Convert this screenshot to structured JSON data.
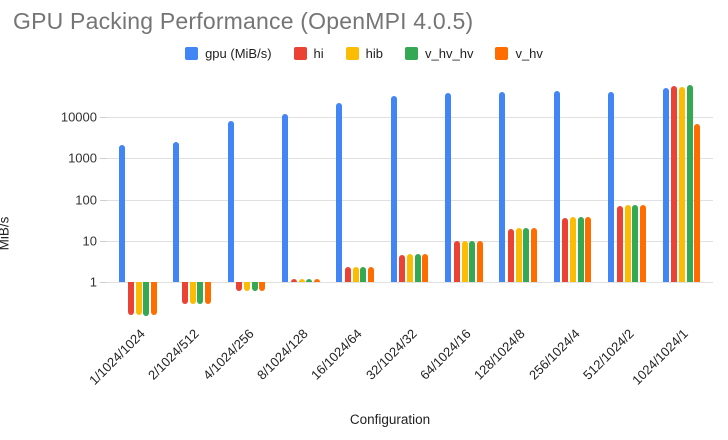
{
  "title": "GPU Packing Performance (OpenMPI 4.0.5)",
  "chart_data": {
    "type": "bar",
    "title": "GPU Packing Performance (OpenMPI 4.0.5)",
    "xlabel": "Configuration",
    "ylabel": "MiB/s",
    "y_scale": "log",
    "y_ticks": [
      10000,
      1000,
      100,
      10,
      1
    ],
    "ylim": [
      0.12,
      60000
    ],
    "bar_baseline": 1,
    "grid": true,
    "legend_position": "top",
    "categories": [
      "1/1024/1024",
      "2/1024/512",
      "4/1024/256",
      "8/1024/128",
      "16/1024/64",
      "32/1024/32",
      "64/1024/16",
      "128/1024/8",
      "256/1024/4",
      "512/1024/2",
      "1024/1024/1"
    ],
    "series": [
      {
        "name": "gpu (MiB/s)",
        "color": "#4285F4",
        "values": [
          2100,
          2500,
          8000,
          12000,
          22000,
          32000,
          39000,
          42000,
          44000,
          41000,
          51000
        ]
      },
      {
        "name": "hi",
        "color": "#EA4335",
        "values": [
          0.16,
          0.3,
          0.6,
          1.2,
          2.3,
          4.6,
          10,
          19,
          35,
          70,
          58000
        ]
      },
      {
        "name": "hib",
        "color": "#FBBC04",
        "values": [
          0.16,
          0.3,
          0.6,
          1.2,
          2.3,
          4.7,
          10,
          20,
          37,
          76,
          53000
        ]
      },
      {
        "name": "v_hv_hv",
        "color": "#34A853",
        "values": [
          0.15,
          0.3,
          0.6,
          1.2,
          2.3,
          4.7,
          10,
          20,
          37,
          73,
          61000
        ]
      },
      {
        "name": "v_hv",
        "color": "#FF6D01",
        "values": [
          0.16,
          0.3,
          0.6,
          1.2,
          2.3,
          4.7,
          10,
          20,
          38,
          76,
          6800
        ]
      }
    ]
  },
  "colors": {
    "title_text": "#757575",
    "axis_text": "#222222",
    "tick_text": "#333333",
    "gridline": "#e0e0e0",
    "background": "#ffffff"
  }
}
